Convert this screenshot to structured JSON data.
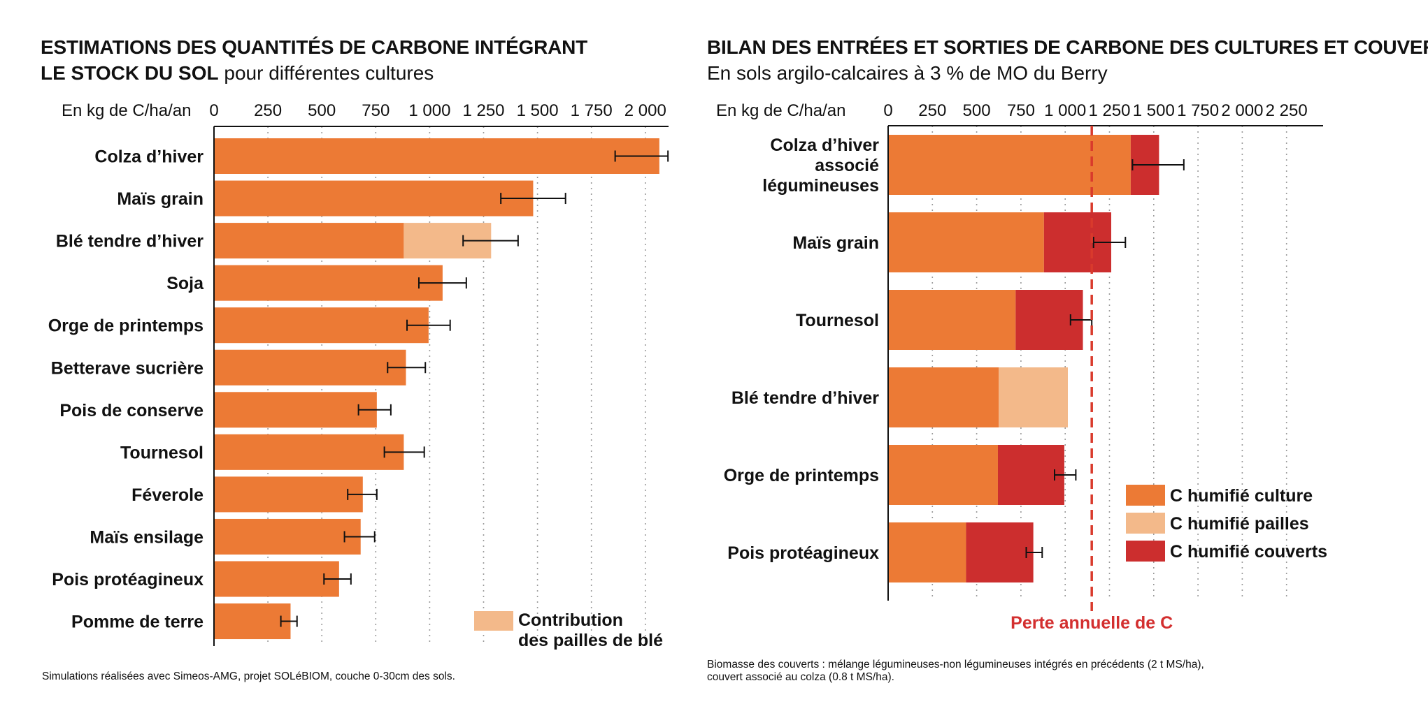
{
  "colors": {
    "culture": "#ec7a35",
    "pailles": "#f3b98a",
    "couverts": "#cc2e2e",
    "loss_line": "#d93a2c",
    "grid": "#9a9a9a"
  },
  "left": {
    "title_line1": "ESTIMATIONS DES QUANTITÉS DE CARBONE INTÉGRANT",
    "title_line2_bold": "LE STOCK DU SOL",
    "title_line2_rest": " pour différentes cultures",
    "axis_unit": "En kg de C/ha/an",
    "footnote": "Simulations réalisées avec Simeos-AMG, projet SOLéBIOM, couche 0-30cm des sols.",
    "legend_label_line1": "Contribution",
    "legend_label_line2": "des pailles de blé"
  },
  "right": {
    "title": "BILAN DES ENTRÉES ET SORTIES DE CARBONE DES CULTURES ET COUVERTS",
    "subtitle": "En sols argilo-calcaires à 3 % de MO du Berry",
    "axis_unit": "En kg de C/ha/an",
    "loss_label": "Perte annuelle de C",
    "footnote_line1": "Biomasse des couverts : mélange légumineuses-non légumineuses intégrés en précédents (2 t MS/ha),",
    "footnote_line2": "couvert associé au colza (0.8 t MS/ha).",
    "legend": [
      "C humifié culture",
      "C humifié pailles",
      "C humifié couverts"
    ]
  },
  "chart_data": [
    {
      "type": "bar",
      "orientation": "horizontal",
      "stacked": true,
      "title": "ESTIMATIONS DES QUANTITÉS DE CARBONE INTÉGRANT LE STOCK DU SOL pour différentes cultures",
      "xlabel": "En kg de C/ha/an",
      "xlim": [
        0,
        2100
      ],
      "xticks": [
        0,
        250,
        500,
        750,
        1000,
        1250,
        1500,
        1750,
        2000
      ],
      "xtick_labels": [
        "0",
        "250",
        "500",
        "750",
        "1 000",
        "1 250",
        "1 500",
        "1 750",
        "2 000"
      ],
      "grid": "vertical dotted",
      "legend_position": "bottom-right",
      "categories": [
        "Colza d’hiver",
        "Maïs grain",
        "Blé tendre d’hiver",
        "Soja",
        "Orge de printemps",
        "Betterave sucrière",
        "Pois de conserve",
        "Tournesol",
        "Féverole",
        "Maïs ensilage",
        "Pois protéagineux",
        "Pomme de terre"
      ],
      "series": [
        {
          "name": "Culture",
          "values": [
            2065,
            1480,
            880,
            1060,
            995,
            890,
            755,
            880,
            690,
            680,
            580,
            355
          ]
        },
        {
          "name": "Contribution des pailles de blé",
          "values": [
            0,
            0,
            405,
            0,
            0,
            0,
            0,
            0,
            0,
            0,
            0,
            0
          ]
        }
      ],
      "error_bars": [
        {
          "low": 1860,
          "high": 2105
        },
        {
          "low": 1330,
          "high": 1630
        },
        {
          "low": 1155,
          "high": 1410
        },
        {
          "low": 950,
          "high": 1170
        },
        {
          "low": 895,
          "high": 1095
        },
        {
          "low": 805,
          "high": 980
        },
        {
          "low": 670,
          "high": 820
        },
        {
          "low": 790,
          "high": 975
        },
        {
          "low": 620,
          "high": 755
        },
        {
          "low": 605,
          "high": 745
        },
        {
          "low": 510,
          "high": 635
        },
        {
          "low": 310,
          "high": 385
        }
      ]
    },
    {
      "type": "bar",
      "orientation": "horizontal",
      "stacked": true,
      "title": "BILAN DES ENTRÉES ET SORTIES DE CARBONE DES CULTURES ET COUVERTS",
      "subtitle": "En sols argilo-calcaires à 3 % de MO du Berry",
      "xlabel": "En kg de C/ha/an",
      "xlim": [
        0,
        2450
      ],
      "xticks": [
        0,
        250,
        500,
        750,
        1000,
        1250,
        1500,
        1750,
        2000,
        2250
      ],
      "xtick_labels": [
        "0",
        "250",
        "500",
        "750",
        "1 000",
        "1 250",
        "1 500",
        "1 750",
        "2 000",
        "2 250"
      ],
      "grid": "vertical dotted",
      "legend_position": "bottom-right",
      "categories": [
        "Colza d’hiver associé légumineuses",
        "Maïs grain",
        "Tournesol",
        "Blé tendre d’hiver",
        "Orge de printemps",
        "Pois protéagineux"
      ],
      "category_lines": [
        [
          "Colza d’hiver",
          "associé",
          "légumineuses"
        ],
        [
          "Maïs grain"
        ],
        [
          "Tournesol"
        ],
        [
          "Blé tendre d’hiver"
        ],
        [
          "Orge de printemps"
        ],
        [
          "Pois protéagineux"
        ]
      ],
      "series": [
        {
          "name": "C humifié culture",
          "values": [
            1370,
            880,
            720,
            625,
            620,
            440
          ]
        },
        {
          "name": "C humifié pailles",
          "values": [
            0,
            0,
            0,
            390,
            0,
            0
          ]
        },
        {
          "name": "C humifié couverts",
          "values": [
            160,
            380,
            380,
            0,
            375,
            380
          ]
        }
      ],
      "error_bars": [
        {
          "low": 1380,
          "high": 1670
        },
        {
          "low": 1160,
          "high": 1340
        },
        {
          "low": 1030,
          "high": 1150
        },
        null,
        {
          "low": 940,
          "high": 1060
        },
        {
          "low": 780,
          "high": 870
        }
      ],
      "reference_line": {
        "value": 1150,
        "label": "Perte annuelle de C"
      }
    }
  ]
}
